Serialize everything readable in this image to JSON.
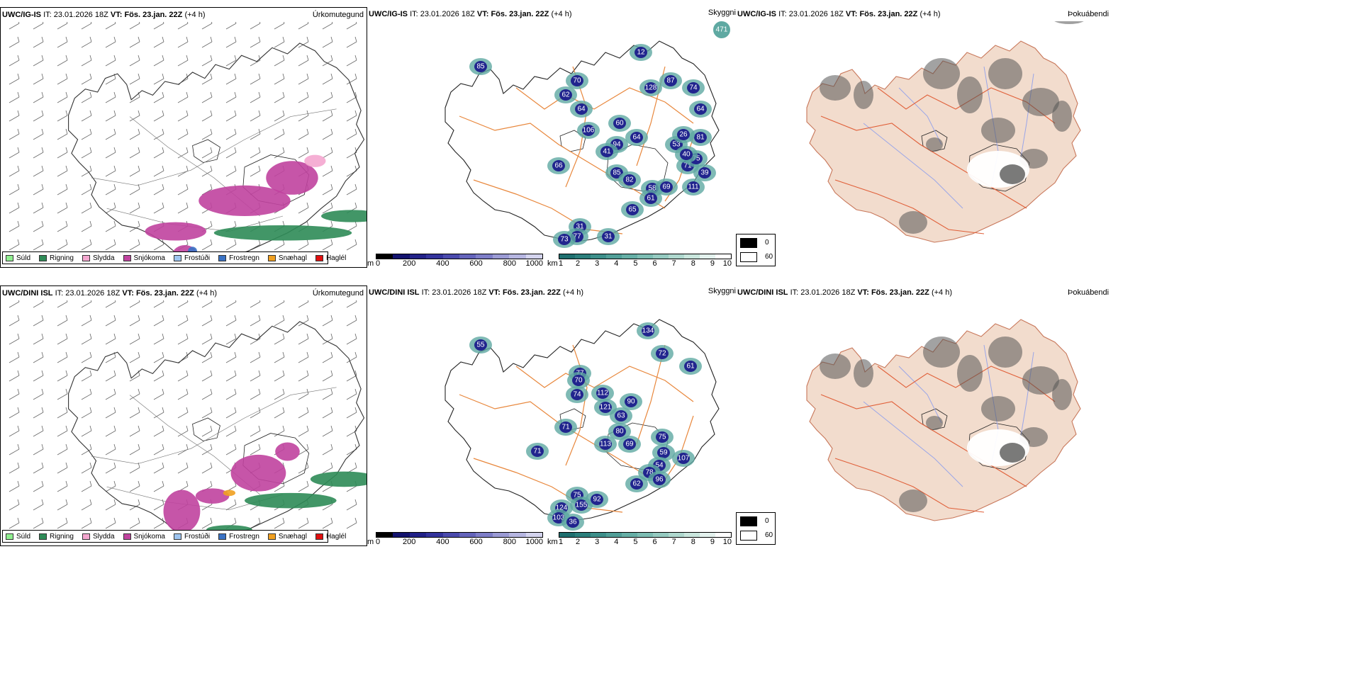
{
  "rows": [
    {
      "model": "UWC/IG-IS",
      "it_label": "IT:",
      "it_value": "23.01.2026 18Z",
      "vt_label": "VT:",
      "vt_value": "Fös. 23.jan. 22Z",
      "offset": "(+4 h)",
      "precip_title": "Úrkomutegund",
      "vis_title": "Skyggni",
      "fog_title": "Þokuábendi",
      "vis_values": [
        "85",
        "70",
        "62",
        "64",
        "106",
        "12",
        "128",
        "87",
        "74",
        "64",
        "60",
        "94",
        "64",
        "53",
        "71",
        "41",
        "85",
        "82",
        "58",
        "61",
        "69",
        "65",
        "31",
        "77",
        "73",
        "31",
        "81",
        "26",
        "75",
        "40",
        "39",
        "66",
        "111"
      ],
      "vis_corner": "471"
    },
    {
      "model": "UWC/DINI ISL",
      "it_label": "IT:",
      "it_value": "23.01.2026 18Z",
      "vt_label": "VT:",
      "vt_value": "Fös. 23.jan. 22Z",
      "offset": "(+4 h)",
      "precip_title": "Úrkomutegund",
      "vis_title": "Skyggni",
      "fog_title": "Þokuábendi",
      "vis_values": [
        "77",
        "70",
        "74",
        "112",
        "121",
        "134",
        "55",
        "72",
        "61",
        "90",
        "63",
        "80",
        "113",
        "69",
        "75",
        "59",
        "54",
        "78",
        "96",
        "62",
        "75",
        "155",
        "92",
        "124",
        "103",
        "36",
        "71",
        "107",
        "71"
      ],
      "vis_corner": ""
    }
  ],
  "precip_legend": [
    {
      "label": "Súld",
      "color": "#90ee90"
    },
    {
      "label": "Rigning",
      "color": "#2e8b57"
    },
    {
      "label": "Slydda",
      "color": "#f4a6cf"
    },
    {
      "label": "Snjókoma",
      "color": "#c0439f"
    },
    {
      "label": "Frostúði",
      "color": "#9ec5f0"
    },
    {
      "label": "Frostregn",
      "color": "#3a72c4"
    },
    {
      "label": "Snæhagl",
      "color": "#f0a020"
    },
    {
      "label": "Haglél",
      "color": "#e01010"
    }
  ],
  "height_bar": {
    "unit": "m",
    "ticks": [
      "0",
      "200",
      "400",
      "600",
      "800",
      "1000"
    ],
    "colors": [
      "#000000",
      "#13136e",
      "#222288",
      "#33339c",
      "#4a4aad",
      "#6464bb",
      "#7e7ec8",
      "#9b9bd4",
      "#b6b6e1",
      "#d4d4ee"
    ]
  },
  "vis_bar": {
    "unit": "km",
    "ticks": [
      "1",
      "2",
      "3",
      "4",
      "5",
      "6",
      "7",
      "8",
      "9",
      "10"
    ],
    "colors": [
      "#1f6f6f",
      "#2c7f7c",
      "#3d8f8a",
      "#519f98",
      "#66afa6",
      "#7dbdb3",
      "#95cac0",
      "#afd8ce",
      "#c9e6dd",
      "#e4f2ee",
      "#ffffff"
    ]
  },
  "fog_legend": [
    {
      "label": "0",
      "color": "#000000"
    },
    {
      "label": "60",
      "color": "#ffffff"
    }
  ],
  "colors": {
    "rain": "#2e8b57",
    "snow": "#c0439f",
    "sleet": "#f4a6cf",
    "freezing_rain": "#3a72c4",
    "road": "#e8873c",
    "vis_dark": "#1c1c8c",
    "vis_teal": "#5fa9a2",
    "fog_land": "#f2dccd",
    "fog_road": "#e0603a",
    "fog_river": "#9aa6e8"
  }
}
